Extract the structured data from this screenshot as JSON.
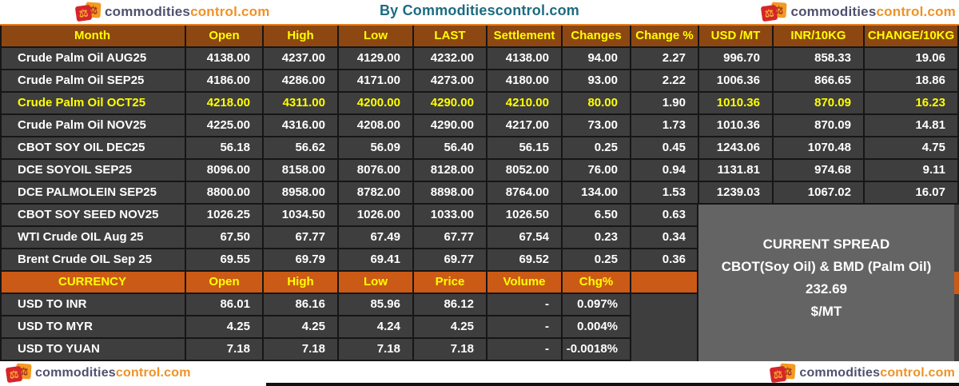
{
  "header": {
    "title": "By Commoditiescontrol.com"
  },
  "logo": {
    "part1": "commodities",
    "part2": "control.com",
    "icon": "scales-icon"
  },
  "futures": {
    "columns": [
      "Month",
      "Open",
      "High",
      "Low",
      "LAST",
      "Settlement",
      "Changes",
      "Change %",
      "USD /MT",
      "INR/10KG",
      "CHANGE/10KG"
    ],
    "rows": [
      {
        "cells": [
          "Crude Palm Oil AUG25",
          "4138.00",
          "4237.00",
          "4129.00",
          "4232.00",
          "4138.00",
          "94.00",
          "2.27",
          "996.70",
          "858.33",
          "19.06"
        ],
        "highlight": false
      },
      {
        "cells": [
          "Crude Palm Oil SEP25",
          "4186.00",
          "4286.00",
          "4171.00",
          "4273.00",
          "4180.00",
          "93.00",
          "2.22",
          "1006.36",
          "866.65",
          "18.86"
        ],
        "highlight": false
      },
      {
        "cells": [
          "Crude Palm Oil OCT25",
          "4218.00",
          "4311.00",
          "4200.00",
          "4290.00",
          "4210.00",
          "80.00",
          "1.90",
          "1010.36",
          "870.09",
          "16.23"
        ],
        "highlight": true,
        "highlight_except": [
          7
        ]
      },
      {
        "cells": [
          "Crude Palm Oil NOV25",
          "4225.00",
          "4316.00",
          "4208.00",
          "4290.00",
          "4217.00",
          "73.00",
          "1.73",
          "1010.36",
          "870.09",
          "14.81"
        ],
        "highlight": false
      },
      {
        "cells": [
          "CBOT SOY OIL DEC25",
          "56.18",
          "56.62",
          "56.09",
          "56.40",
          "56.15",
          "0.25",
          "0.45",
          "1243.06",
          "1070.48",
          "4.75"
        ],
        "highlight": false
      },
      {
        "cells": [
          "DCE SOYOIL SEP25",
          "8096.00",
          "8158.00",
          "8076.00",
          "8128.00",
          "8052.00",
          "76.00",
          "0.94",
          "1131.81",
          "974.68",
          "9.11"
        ],
        "highlight": false
      },
      {
        "cells": [
          "DCE PALMOLEIN SEP25",
          "8800.00",
          "8958.00",
          "8782.00",
          "8898.00",
          "8764.00",
          "134.00",
          "1.53",
          "1239.03",
          "1067.02",
          "16.07"
        ],
        "highlight": false
      },
      {
        "cells": [
          "CBOT SOY SEED NOV25",
          "1026.25",
          "1034.50",
          "1026.00",
          "1033.00",
          "1026.50",
          "6.50",
          "0.63"
        ],
        "highlight": false
      },
      {
        "cells": [
          "WTI Crude OIL Aug 25",
          "67.50",
          "67.77",
          "67.49",
          "67.77",
          "67.54",
          "0.23",
          "0.34"
        ],
        "highlight": false
      },
      {
        "cells": [
          "Brent Crude OIL Sep 25",
          "69.55",
          "69.79",
          "69.41",
          "69.77",
          "69.52",
          "0.25",
          "0.36"
        ],
        "highlight": false
      }
    ]
  },
  "currency": {
    "columns": [
      "CURRENCY",
      "Open",
      "High",
      "Low",
      "Price",
      "Volume",
      "Chg%",
      ""
    ],
    "rows": [
      [
        "USD TO INR",
        "86.01",
        "86.16",
        "85.96",
        "86.12",
        "-",
        "0.097%"
      ],
      [
        "USD TO MYR",
        "4.25",
        "4.25",
        "4.24",
        "4.25",
        "-",
        "0.004%"
      ],
      [
        "USD TO YUAN",
        "7.18",
        "7.18",
        "7.18",
        "7.18",
        "-",
        "-0.0018%"
      ]
    ]
  },
  "spread_panel": {
    "line1": "CURRENT SPREAD",
    "line2": "CBOT(Soy Oil) & BMD (Palm Oil)",
    "value": "232.69",
    "unit": "$/MT"
  },
  "colors": {
    "header_brown": "#8d4712",
    "currency_orange": "#cb5a16",
    "cell_dark": "#3e3e3e",
    "panel_gray": "#646464",
    "highlight_yellow": "#ffff00",
    "title_teal": "#1d6b80",
    "logo_orange": "#ef9226",
    "logo_dark": "#50506e"
  }
}
